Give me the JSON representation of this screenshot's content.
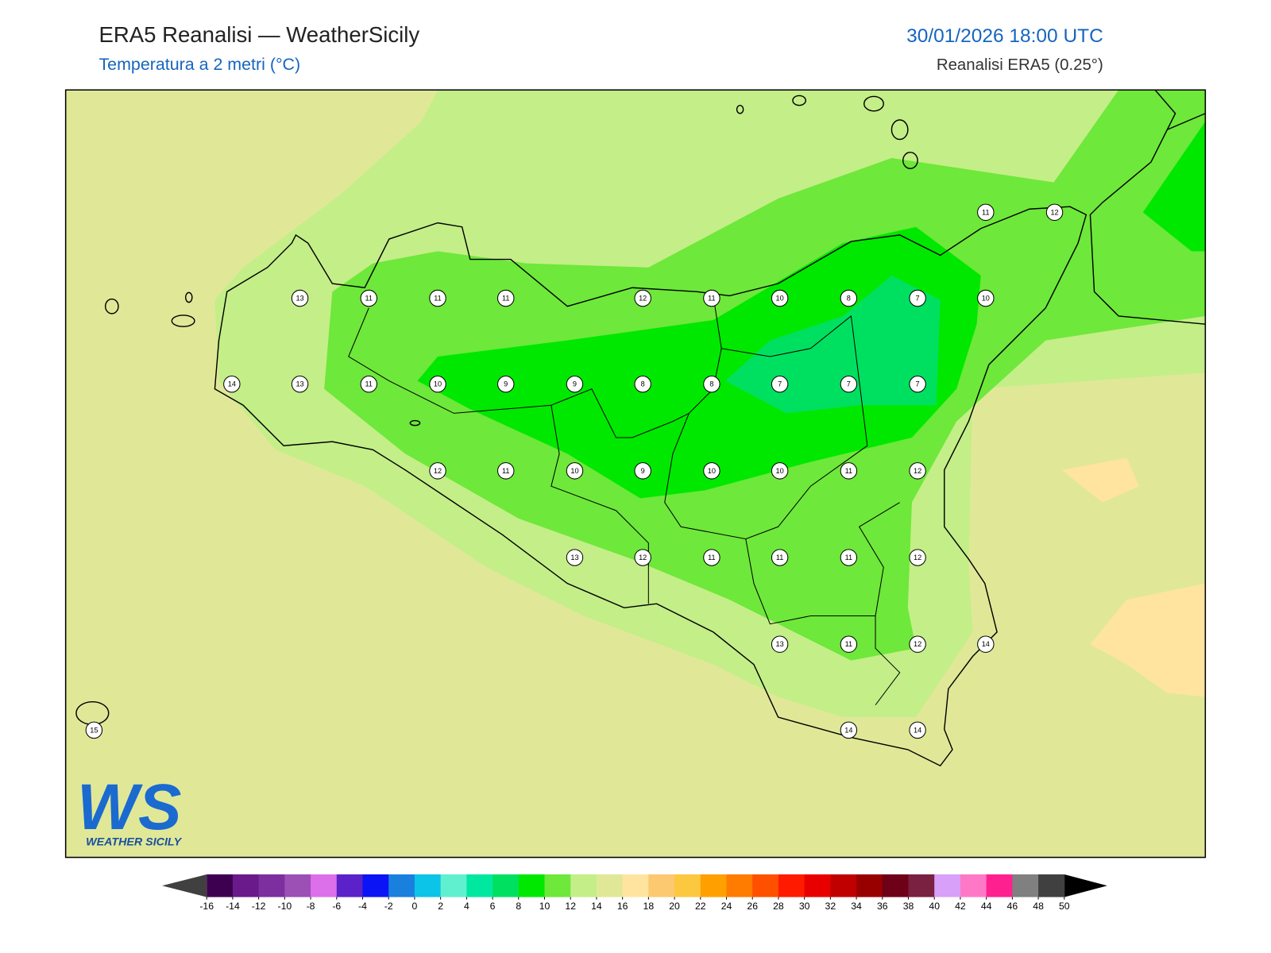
{
  "header": {
    "title": "ERA5 Reanalisi — WeatherSicily",
    "subtitle": "Temperatura a 2 metri (°C)",
    "datetime": "30/01/2026 18:00 UTC",
    "source": "Reanalisi ERA5 (0.25°)"
  },
  "stations": [
    11,
    12,
    13,
    11,
    11,
    11,
    12,
    11,
    10,
    8,
    7,
    10,
    14,
    13,
    11,
    10,
    9,
    9,
    8,
    8,
    7,
    7,
    7,
    12,
    11,
    10,
    9,
    10,
    10,
    11,
    12,
    13,
    12,
    11,
    11,
    11,
    12,
    13,
    11,
    12,
    14,
    15,
    14,
    14
  ],
  "colorbar": {
    "ticks": [
      -16,
      -14,
      -12,
      -10,
      -8,
      -6,
      -4,
      -2,
      0,
      2,
      4,
      6,
      8,
      10,
      12,
      14,
      16,
      18,
      20,
      22,
      24,
      26,
      28,
      30,
      32,
      34,
      36,
      38,
      40,
      42,
      44,
      46,
      48,
      50
    ],
    "colors": [
      "#3d0050",
      "#6a1a8a",
      "#7d2fa0",
      "#9c4fb5",
      "#dc70ea",
      "#5a22c8",
      "#0a14f5",
      "#1a80de",
      "#0cc4e8",
      "#60f0d0",
      "#00e8a0",
      "#00e060",
      "#00e800",
      "#6ee83a",
      "#c4ee88",
      "#e0e898",
      "#ffe4a0",
      "#fcc870",
      "#fcc840",
      "#ffa000",
      "#ff7c00",
      "#ff5000",
      "#ff1a00",
      "#e80000",
      "#c00000",
      "#980000",
      "#6e0018",
      "#7a2040",
      "#d8a0f8",
      "#ff78c8",
      "#ff2090",
      "#808080",
      "#404040"
    ],
    "under_color": "#404040",
    "over_color": "#000000"
  },
  "logo": {
    "mark": "WS",
    "text": "WEATHER SICILY"
  }
}
